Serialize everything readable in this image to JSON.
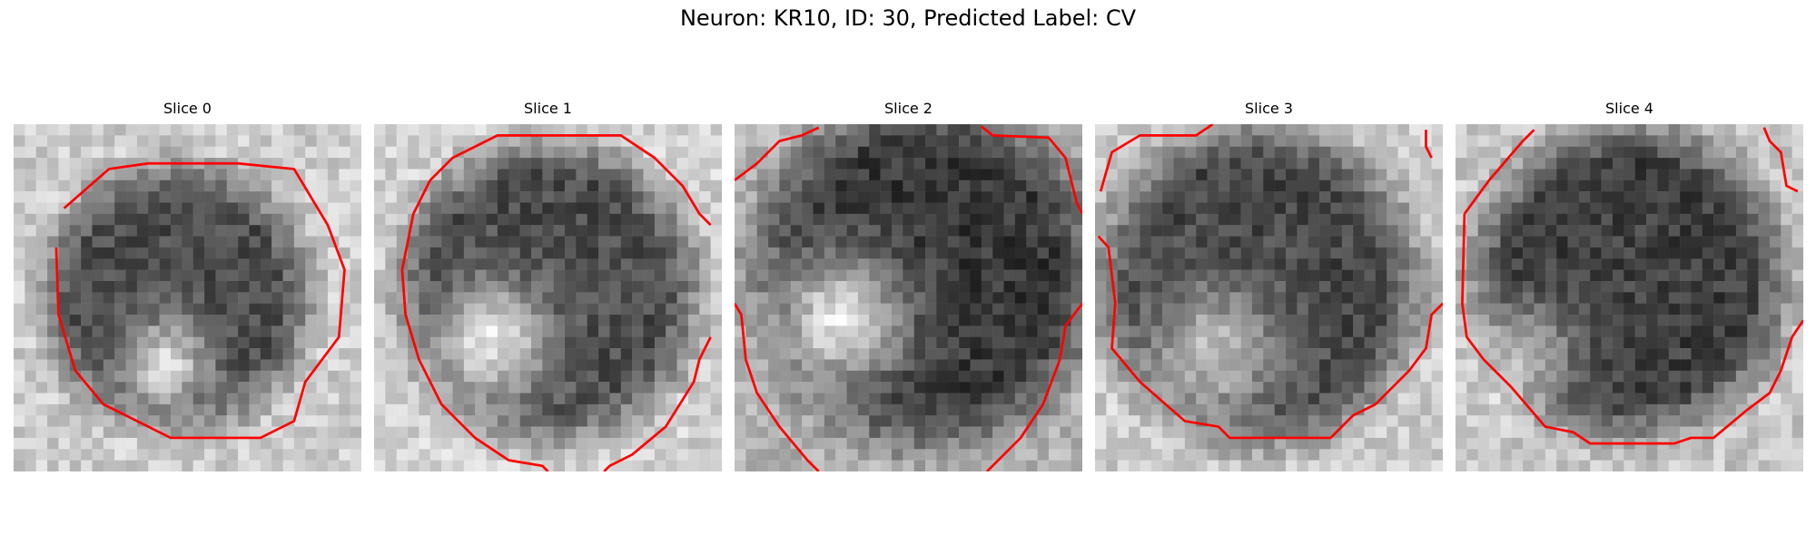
{
  "figure": {
    "title": "Neuron: KR10, ID: 30, Predicted Label: CV"
  },
  "slices": [
    {
      "title": "Slice 0"
    },
    {
      "title": "Slice 1"
    },
    {
      "title": "Slice 2"
    },
    {
      "title": "Slice 3"
    },
    {
      "title": "Slice 4"
    }
  ],
  "colors": {
    "contour": "#ff0000",
    "colormap": "gray"
  }
}
